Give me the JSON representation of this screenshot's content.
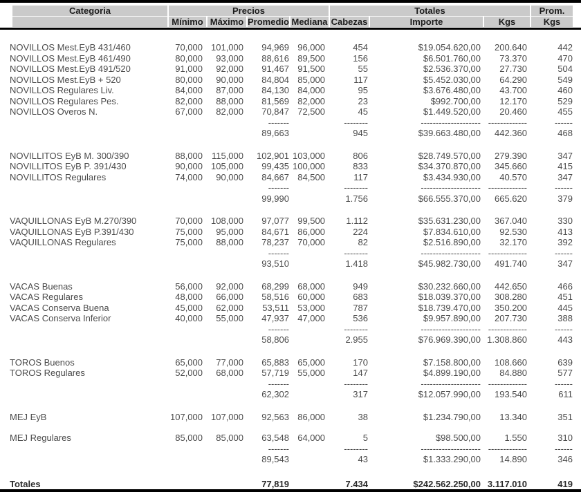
{
  "header": {
    "categoria": "Categoria",
    "precios": "Precios",
    "totales": "Totales",
    "prom": "Prom.",
    "columns": [
      "Mínimo",
      "Máximo",
      "Promedio",
      "Mediana",
      "Cabezas",
      "Importe",
      "Kgs",
      "Kgs"
    ]
  },
  "dashes": {
    "prom": "-------",
    "cab": "--------",
    "imp": "--------------------",
    "kgs": "-------------",
    "pkg": "------"
  },
  "groups": [
    {
      "rows": [
        {
          "cat": "NOVILLOS Mest.EyB 431/460",
          "min": "70,000",
          "max": "101,000",
          "prom": "94,969",
          "med": "96,000",
          "cab": "454",
          "imp": "$19.054.620,00",
          "kgs": "200.640",
          "pkg": "442"
        },
        {
          "cat": "NOVILLOS Mest.EyB 461/490",
          "min": "80,000",
          "max": "93,000",
          "prom": "88,616",
          "med": "89,500",
          "cab": "156",
          "imp": "$6.501.760,00",
          "kgs": "73.370",
          "pkg": "470"
        },
        {
          "cat": "NOVILLOS Mest.EyB 491/520",
          "min": "91,000",
          "max": "92,000",
          "prom": "91,467",
          "med": "91,500",
          "cab": "55",
          "imp": "$2.536.370,00",
          "kgs": "27.730",
          "pkg": "504"
        },
        {
          "cat": "NOVILLOS Mest.EyB + 520",
          "min": "80,000",
          "max": "90,000",
          "prom": "84,804",
          "med": "85,000",
          "cab": "117",
          "imp": "$5.452.030,00",
          "kgs": "64.290",
          "pkg": "549"
        },
        {
          "cat": "NOVILLOS Regulares Liv.",
          "min": "84,000",
          "max": "87,000",
          "prom": "84,130",
          "med": "84,000",
          "cab": "95",
          "imp": "$3.676.480,00",
          "kgs": "43.700",
          "pkg": "460"
        },
        {
          "cat": "NOVILLOS Regulares Pes.",
          "min": "82,000",
          "max": "88,000",
          "prom": "81,569",
          "med": "82,000",
          "cab": "23",
          "imp": "$992.700,00",
          "kgs": "12.170",
          "pkg": "529"
        },
        {
          "cat": "NOVILLOS Overos N.",
          "min": "67,000",
          "max": "82,000",
          "prom": "70,847",
          "med": "72,500",
          "cab": "45",
          "imp": "$1.449.520,00",
          "kgs": "20.460",
          "pkg": "455"
        }
      ],
      "subtotal": {
        "prom": "89,663",
        "cab": "945",
        "imp": "$39.663.480,00",
        "kgs": "442.360",
        "pkg": "468"
      }
    },
    {
      "rows": [
        {
          "cat": "NOVILLITOS EyB M. 300/390",
          "min": "88,000",
          "max": "115,000",
          "prom": "102,901",
          "med": "103,000",
          "cab": "806",
          "imp": "$28.749.570,00",
          "kgs": "279.390",
          "pkg": "347"
        },
        {
          "cat": "NOVILLITOS EyB P. 391/430",
          "min": "90,000",
          "max": "105,000",
          "prom": "99,435",
          "med": "100,000",
          "cab": "833",
          "imp": "$34.370.870,00",
          "kgs": "345.660",
          "pkg": "415"
        },
        {
          "cat": "NOVILLITOS Regulares",
          "min": "74,000",
          "max": "90,000",
          "prom": "84,667",
          "med": "84,500",
          "cab": "117",
          "imp": "$3.434.930,00",
          "kgs": "40.570",
          "pkg": "347"
        }
      ],
      "subtotal": {
        "prom": "99,990",
        "cab": "1.756",
        "imp": "$66.555.370,00",
        "kgs": "665.620",
        "pkg": "379"
      }
    },
    {
      "rows": [
        {
          "cat": "VAQUILLONAS EyB M.270/390",
          "min": "70,000",
          "max": "108,000",
          "prom": "97,077",
          "med": "99,500",
          "cab": "1.112",
          "imp": "$35.631.230,00",
          "kgs": "367.040",
          "pkg": "330"
        },
        {
          "cat": "VAQUILLONAS EyB P.391/430",
          "min": "75,000",
          "max": "95,000",
          "prom": "84,671",
          "med": "86,000",
          "cab": "224",
          "imp": "$7.834.610,00",
          "kgs": "92.530",
          "pkg": "413"
        },
        {
          "cat": "VAQUILLONAS Regulares",
          "min": "75,000",
          "max": "88,000",
          "prom": "78,237",
          "med": "70,000",
          "cab": "82",
          "imp": "$2.516.890,00",
          "kgs": "32.170",
          "pkg": "392"
        }
      ],
      "subtotal": {
        "prom": "93,510",
        "cab": "1.418",
        "imp": "$45.982.730,00",
        "kgs": "491.740",
        "pkg": "347"
      }
    },
    {
      "rows": [
        {
          "cat": "VACAS Buenas",
          "min": "56,000",
          "max": "92,000",
          "prom": "68,299",
          "med": "68,000",
          "cab": "949",
          "imp": "$30.232.660,00",
          "kgs": "442.650",
          "pkg": "466"
        },
        {
          "cat": "VACAS Regulares",
          "min": "48,000",
          "max": "66,000",
          "prom": "58,516",
          "med": "60,000",
          "cab": "683",
          "imp": "$18.039.370,00",
          "kgs": "308.280",
          "pkg": "451"
        },
        {
          "cat": "VACAS Conserva Buena",
          "min": "45,000",
          "max": "62,000",
          "prom": "53,511",
          "med": "53,000",
          "cab": "787",
          "imp": "$18.739.470,00",
          "kgs": "350.200",
          "pkg": "445"
        },
        {
          "cat": "VACAS Conserva Inferior",
          "min": "40,000",
          "max": "55,000",
          "prom": "47,937",
          "med": "47,000",
          "cab": "536",
          "imp": "$9.957.890,00",
          "kgs": "207.730",
          "pkg": "388"
        }
      ],
      "subtotal": {
        "prom": "58,806",
        "cab": "2.955",
        "imp": "$76.969.390,00",
        "kgs": "1.308.860",
        "pkg": "443"
      }
    },
    {
      "rows": [
        {
          "cat": "TOROS Buenos",
          "min": "65,000",
          "max": "77,000",
          "prom": "65,883",
          "med": "65,000",
          "cab": "170",
          "imp": "$7.158.800,00",
          "kgs": "108.660",
          "pkg": "639"
        },
        {
          "cat": "TOROS Regulares",
          "min": "52,000",
          "max": "68,000",
          "prom": "57,719",
          "med": "55,000",
          "cab": "147",
          "imp": "$4.899.190,00",
          "kgs": "84.880",
          "pkg": "577"
        }
      ],
      "subtotal": {
        "prom": "62,302",
        "cab": "317",
        "imp": "$12.057.990,00",
        "kgs": "193.540",
        "pkg": "611"
      }
    },
    {
      "rows": [
        {
          "cat": "MEJ EyB",
          "min": "107,000",
          "max": "107,000",
          "prom": "92,563",
          "med": "86,000",
          "cab": "38",
          "imp": "$1.234.790,00",
          "kgs": "13.340",
          "pkg": "351"
        }
      ],
      "subtotal": null
    },
    {
      "rows": [
        {
          "cat": "MEJ Regulares",
          "min": "85,000",
          "max": "85,000",
          "prom": "63,548",
          "med": "64,000",
          "cab": "5",
          "imp": "$98.500,00",
          "kgs": "1.550",
          "pkg": "310"
        }
      ],
      "subtotal": {
        "prom": "89,543",
        "cab": "43",
        "imp": "$1.333.290,00",
        "kgs": "14.890",
        "pkg": "346"
      }
    }
  ],
  "totals": {
    "label": "Totales",
    "prom": "77,819",
    "cab": "7.434",
    "imp": "$242.562.250,00",
    "kgs": "3.117.010",
    "pkg": "419"
  }
}
